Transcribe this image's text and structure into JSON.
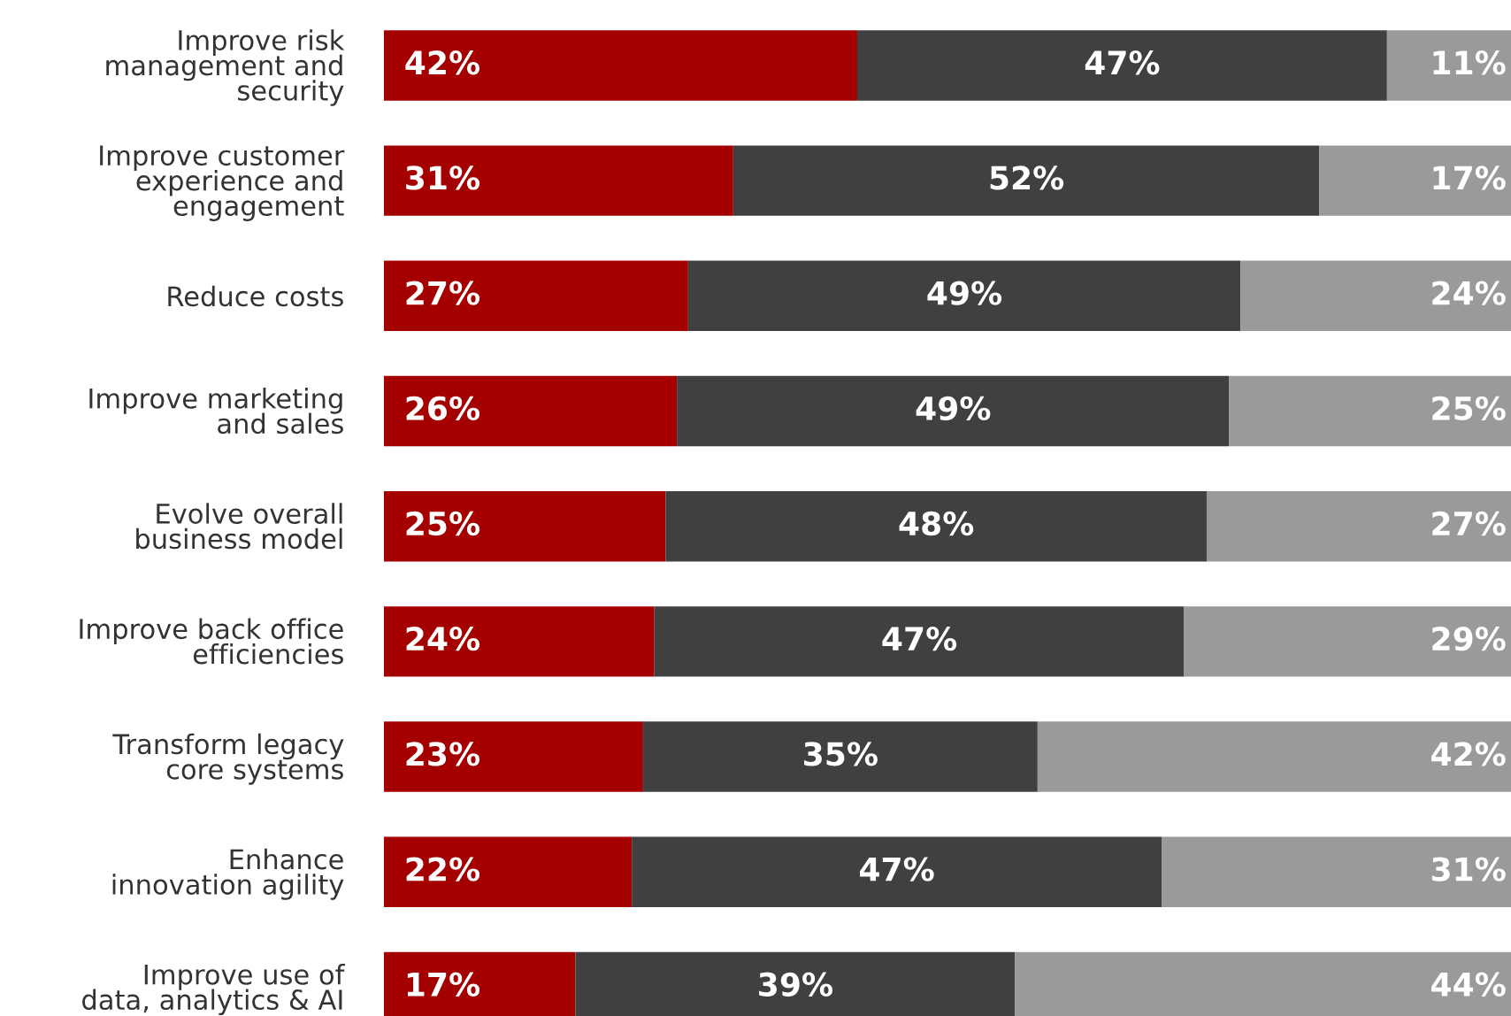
{
  "chart_data": {
    "type": "bar",
    "orientation": "horizontal",
    "stacked": true,
    "categories": [
      "Improve risk\nmanagement and\nsecurity",
      "Improve customer\nexperience and\nengagement",
      "Reduce costs",
      "Improve marketing\nand sales",
      "Evolve overall\nbusiness model",
      "Improve back office\nefficiencies",
      "Transform legacy\ncore systems",
      "Enhance\ninnovation agility",
      "Improve use of\ndata, analytics & AI"
    ],
    "series": [
      {
        "color": "#a50000",
        "values": [
          42,
          31,
          27,
          26,
          25,
          24,
          23,
          22,
          17
        ],
        "value_labels": [
          "42%",
          "31%",
          "27%",
          "26%",
          "25%",
          "24%",
          "23%",
          "22%",
          "17%"
        ]
      },
      {
        "color": "#404040",
        "values": [
          47,
          52,
          49,
          49,
          48,
          47,
          35,
          47,
          39
        ],
        "value_labels": [
          "47%",
          "52%",
          "49%",
          "49%",
          "48%",
          "47%",
          "35%",
          "47%",
          "39%"
        ]
      },
      {
        "color": "#9a9a9a",
        "values": [
          11,
          17,
          24,
          25,
          27,
          29,
          42,
          31,
          44
        ],
        "value_labels": [
          "11%",
          "17%",
          "24%",
          "25%",
          "27%",
          "29%",
          "42%",
          "31%",
          "44%"
        ]
      }
    ],
    "grid": false,
    "legend": false
  }
}
